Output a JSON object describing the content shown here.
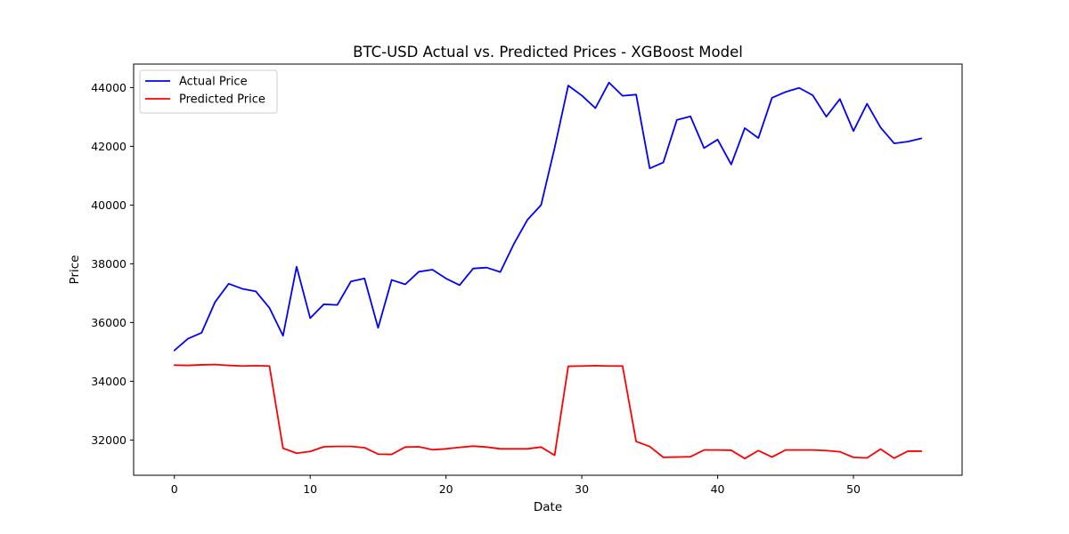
{
  "chart_data": {
    "type": "line",
    "title": "BTC-USD Actual vs. Predicted Prices - XGBoost Model",
    "xlabel": "Date",
    "ylabel": "Price",
    "xlim": [
      -3,
      58
    ],
    "ylim": [
      30800,
      44800
    ],
    "xticks": [
      0,
      10,
      20,
      30,
      40,
      50
    ],
    "yticks": [
      32000,
      34000,
      36000,
      38000,
      40000,
      42000,
      44000
    ],
    "grid": false,
    "legend_position": "top-left",
    "x": [
      0,
      1,
      2,
      3,
      4,
      5,
      6,
      7,
      8,
      9,
      10,
      11,
      12,
      13,
      14,
      15,
      16,
      17,
      18,
      19,
      20,
      21,
      22,
      23,
      24,
      25,
      26,
      27,
      28,
      29,
      30,
      31,
      32,
      33,
      34,
      35,
      36,
      37,
      38,
      39,
      40,
      41,
      42,
      43,
      44,
      45,
      46,
      47,
      48,
      49,
      50,
      51,
      52,
      53,
      54,
      55
    ],
    "series": [
      {
        "name": "Actual Price",
        "color": "#0000ff",
        "values": [
          35050,
          35450,
          35650,
          36700,
          37320,
          37150,
          37060,
          36500,
          35550,
          37900,
          36150,
          36620,
          36600,
          37400,
          37500,
          35820,
          37450,
          37300,
          37730,
          37800,
          37500,
          37270,
          37840,
          37870,
          37720,
          38680,
          39500,
          40000,
          41950,
          44070,
          43730,
          43300,
          44170,
          43720,
          43760,
          41250,
          41450,
          42900,
          43020,
          41940,
          42230,
          41380,
          42620,
          42280,
          43650,
          43850,
          43990,
          43740,
          43010,
          43610,
          42520,
          43450,
          42640,
          42100,
          42160,
          42270
        ]
      },
      {
        "name": "Predicted Price",
        "color": "#ff0000",
        "values": [
          34550,
          34540,
          34560,
          34570,
          34540,
          34520,
          34530,
          34520,
          31720,
          31550,
          31610,
          31770,
          31780,
          31780,
          31740,
          31520,
          31510,
          31760,
          31770,
          31670,
          31700,
          31750,
          31790,
          31760,
          31700,
          31700,
          31700,
          31760,
          31480,
          34510,
          34520,
          34530,
          34520,
          34520,
          31950,
          31780,
          31410,
          31420,
          31430,
          31660,
          31660,
          31650,
          31370,
          31640,
          31420,
          31660,
          31660,
          31660,
          31640,
          31600,
          31410,
          31390,
          31690,
          31380,
          31620,
          31620
        ]
      }
    ]
  }
}
